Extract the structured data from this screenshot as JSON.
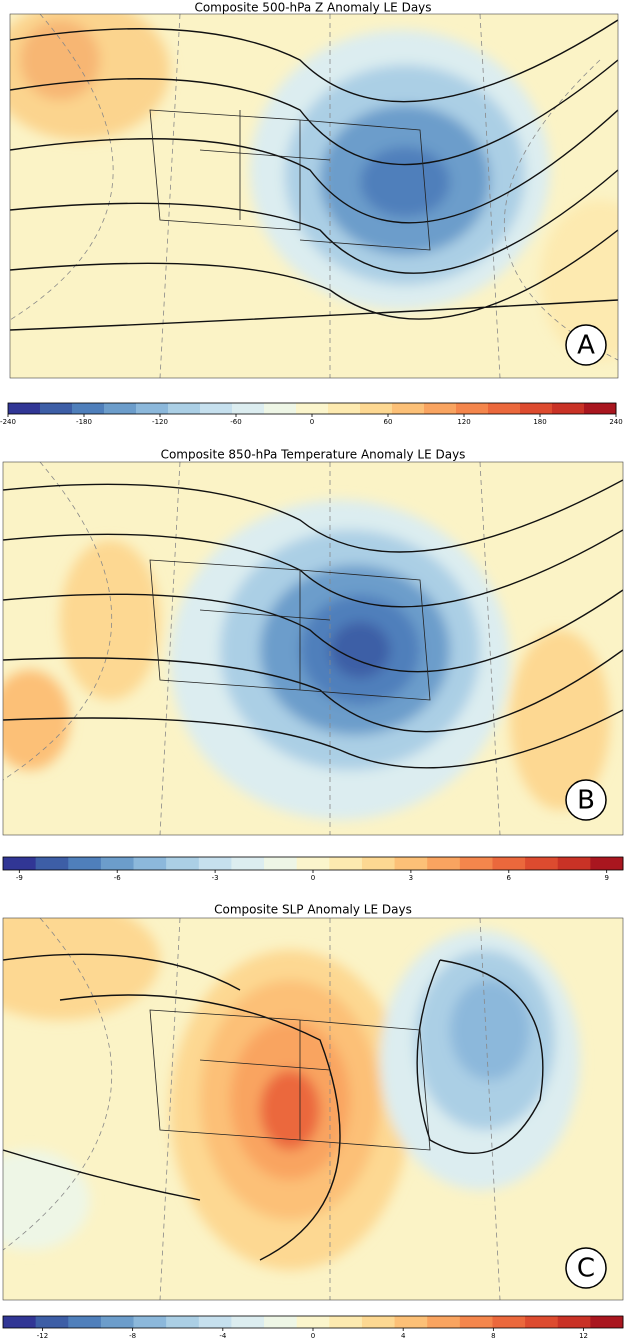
{
  "colormap": [
    "#313695",
    "#3d5ea6",
    "#4f7fbb",
    "#6c9dcb",
    "#8cb8db",
    "#abcfe5",
    "#c6e0ee",
    "#dcedf0",
    "#eef6e6",
    "#fbf5cc",
    "#fdeab0",
    "#fdd892",
    "#fcc077",
    "#f9a460",
    "#f4864c",
    "#eb683c",
    "#dd4b2f",
    "#c93226",
    "#a9161f"
  ],
  "panels": [
    {
      "title": "Composite 500-hPa Z Anomaly LE Days",
      "label": "A",
      "colorbar": {
        "lim": [
          -240,
          240
        ],
        "ticks": [
          -240,
          -180,
          -120,
          -60,
          0,
          60,
          120,
          180,
          240
        ]
      }
    },
    {
      "title": "Composite 850-hPa Temperature Anomaly LE Days",
      "label": "B",
      "colorbar": {
        "lim": [
          -9.5,
          9.5
        ],
        "ticks": [
          -9,
          -6,
          -3,
          0,
          3,
          6,
          9
        ]
      }
    },
    {
      "title": "Composite SLP Anomaly LE Days",
      "label": "C",
      "colorbar": {
        "lim": [
          -13.75,
          13.75
        ],
        "ticks": [
          -12,
          -8,
          -4,
          0,
          4,
          8,
          12
        ]
      }
    }
  ]
}
